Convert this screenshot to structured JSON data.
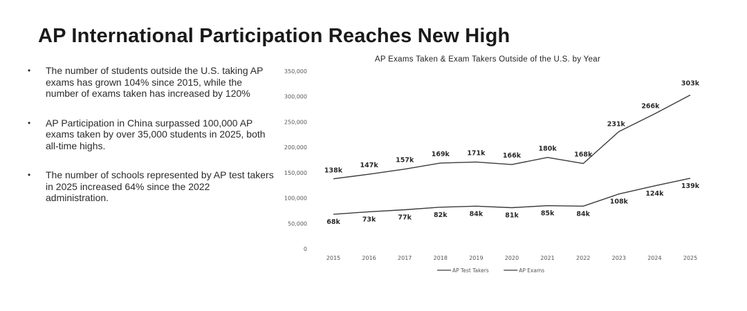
{
  "slide": {
    "title": "AP International Participation Reaches New High",
    "bullets": [
      "The number of students outside the U.S. taking AP exams has grown 104% since 2015, while the number of exams taken has increased by 120%",
      "AP Participation in China surpassed 100,000 AP exams taken by over 35,000 students in 2025, both all-time highs.",
      "The number of schools represented by AP test takers in 2025 increased 64% since the 2022 administration."
    ],
    "bullet_marker": "•"
  },
  "chart_data": {
    "type": "line",
    "title": "AP Exams Taken & Exam Takers Outside of the U.S. by Year",
    "x": [
      "2015",
      "2016",
      "2017",
      "2018",
      "2019",
      "2020",
      "2021",
      "2022",
      "2023",
      "2024",
      "2025"
    ],
    "ylim": [
      0,
      350000
    ],
    "yticks": [
      0,
      50000,
      100000,
      150000,
      200000,
      250000,
      300000,
      350000
    ],
    "ytick_labels": [
      "0",
      "50,000",
      "100,000",
      "150,000",
      "200,000",
      "250,000",
      "300,000",
      "350,000"
    ],
    "grid": false,
    "legend_position": "bottom",
    "series": [
      {
        "name": "AP Test Takers",
        "values": [
          68000,
          73000,
          77000,
          82000,
          84000,
          81000,
          85000,
          84000,
          108000,
          124000,
          139000
        ],
        "labels": [
          "68k",
          "73k",
          "77k",
          "82k",
          "84k",
          "81k",
          "85k",
          "84k",
          "108k",
          "124k",
          "139k"
        ],
        "color": "#3a3a3a"
      },
      {
        "name": "AP Exams",
        "values": [
          138000,
          147000,
          157000,
          169000,
          171000,
          166000,
          180000,
          168000,
          231000,
          266000,
          303000
        ],
        "labels": [
          "138k",
          "147k",
          "157k",
          "169k",
          "171k",
          "166k",
          "180k",
          "168k",
          "231k",
          "266k",
          "303k"
        ],
        "color": "#3a3a3a"
      }
    ]
  }
}
